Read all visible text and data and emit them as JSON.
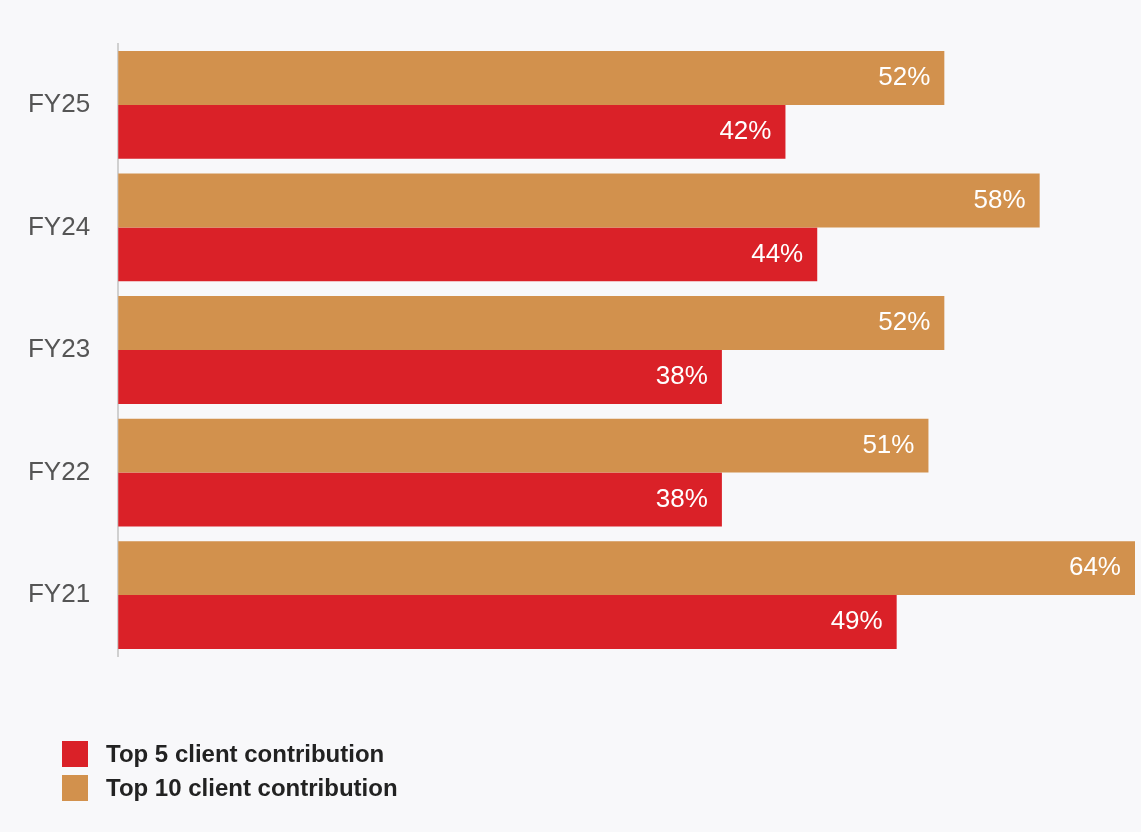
{
  "chart_data": {
    "type": "bar",
    "orientation": "horizontal",
    "categories": [
      "FY25",
      "FY24",
      "FY23",
      "FY22",
      "FY21"
    ],
    "series": [
      {
        "name": "Top 5 client contribution",
        "color": "#da2128",
        "values": [
          42,
          44,
          38,
          38,
          49
        ],
        "value_labels": [
          "42%",
          "44%",
          "38%",
          "38%",
          "49%"
        ]
      },
      {
        "name": "Top 10 client contribution",
        "color": "#d2914d",
        "values": [
          52,
          58,
          52,
          51,
          64
        ],
        "value_labels": [
          "52%",
          "58%",
          "52%",
          "51%",
          "64%"
        ]
      }
    ],
    "legend": "bottom left"
  }
}
